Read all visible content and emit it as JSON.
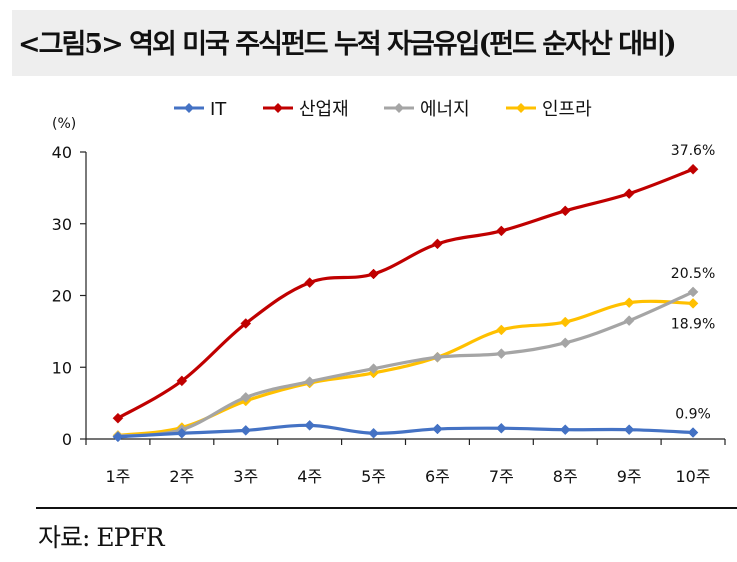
{
  "header": {
    "title": "<그림5> 역외 미국 주식펀드 누적 자금유입(펀드 순자산 대비)"
  },
  "source": {
    "text": "자료: EPFR"
  },
  "chart_data": {
    "type": "line",
    "title": "역외 미국 주식펀드 누적 자금유입(펀드 순자산 대비)",
    "ylabel": "(%)",
    "xlabel": "",
    "ylim": [
      0,
      40
    ],
    "yticks": [
      0,
      10,
      20,
      30,
      40
    ],
    "categories": [
      "1주",
      "2주",
      "3주",
      "4주",
      "5주",
      "6주",
      "7주",
      "8주",
      "9주",
      "10주"
    ],
    "legend_position": "top",
    "grid": false,
    "series": [
      {
        "name": "IT",
        "color": "#4472C4",
        "values": [
          0.3,
          0.8,
          1.2,
          1.9,
          0.8,
          1.4,
          1.5,
          1.3,
          1.3,
          0.9
        ]
      },
      {
        "name": "산업재",
        "color": "#C00000",
        "values": [
          2.9,
          8.1,
          16.1,
          21.8,
          23.0,
          27.2,
          29.0,
          31.8,
          34.2,
          37.6
        ]
      },
      {
        "name": "에너지",
        "color": "#A5A5A5",
        "values": [
          0.4,
          1.3,
          5.8,
          8.0,
          9.8,
          11.4,
          11.9,
          13.4,
          16.5,
          20.5
        ]
      },
      {
        "name": "인프라",
        "color": "#FFC000",
        "values": [
          0.5,
          1.6,
          5.3,
          7.8,
          9.2,
          11.4,
          15.2,
          16.3,
          19.0,
          18.9
        ]
      }
    ],
    "annotations": [
      {
        "series": "산업재",
        "label": "37.6%"
      },
      {
        "series": "에너지",
        "label": "20.5%"
      },
      {
        "series": "인프라",
        "label": "18.9%"
      },
      {
        "series": "IT",
        "label": "0.9%"
      }
    ]
  }
}
